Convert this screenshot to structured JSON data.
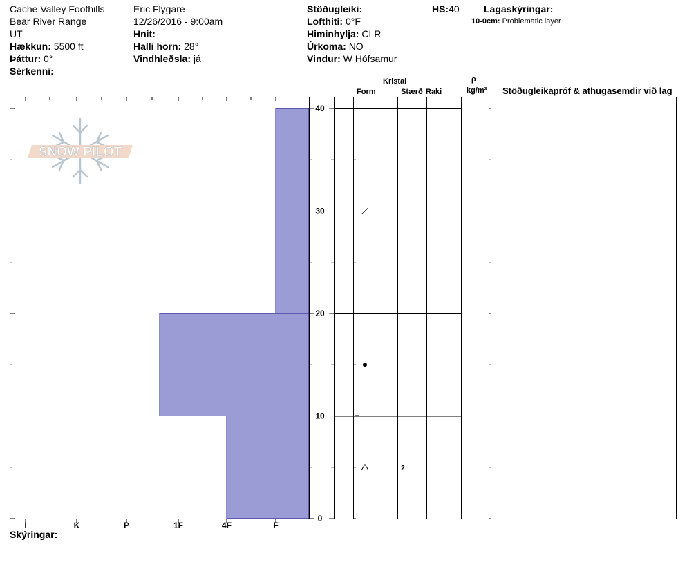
{
  "header": {
    "location": "Cache Valley Foothills",
    "range": "Bear River Range",
    "state": "UT",
    "elevation_label": "Hækkun:",
    "elevation_value": "5500 ft",
    "aspect_label": "Þáttur:",
    "aspect_value": "0°",
    "features_label": "Sérkenni:",
    "observer": "Eric Flygare",
    "datetime": "12/26/2016 - 9:00am",
    "coords_label": "Hnit:",
    "slope_label": "Halli horn:",
    "slope_value": "28°",
    "wind_loading_label": "Vindhleðsla:",
    "wind_loading_value": "já",
    "stability_label": "Stöðugleiki:",
    "air_temp_label": "Lofthiti:",
    "air_temp_value": "0°F",
    "sky_label": "Himinhylja:",
    "sky_value": "CLR",
    "precip_label": "Úrkoma:",
    "precip_value": "NO",
    "wind_label": "Vindur:",
    "wind_value": "W Hófsamur",
    "hs_label": "HS:",
    "hs_value": "40",
    "layer_notes_label": "Lagaskýringar:",
    "layer_note_depth": "10-0cm:",
    "layer_note_text": "Problematic layer",
    "footer_label": "Skýringar:"
  },
  "logo_text": "SNOW PILOT",
  "columns": {
    "crystal": "Kristal",
    "form": "Form",
    "size": "Stærð",
    "moisture": "Raki",
    "rho": "ρ",
    "density_unit": "kg/m³",
    "tests": "Stöðugleikapróf & athugasemdir við lag"
  },
  "chart_data": {
    "type": "bar",
    "orientation": "horizontal-step",
    "y_label": "",
    "ylim": [
      0,
      40
    ],
    "y_ticks": [
      0,
      10,
      20,
      30,
      40
    ],
    "x_categories": [
      "I",
      "K",
      "P",
      "1F",
      "4F",
      "F"
    ],
    "x_direction": "hardness increases to the left; bars extend leftward from the right edge",
    "layers": [
      {
        "top": 40,
        "bottom": 20,
        "hardness": "F"
      },
      {
        "top": 20,
        "bottom": 10,
        "hardness": "1F-"
      },
      {
        "top": 10,
        "bottom": 0,
        "hardness": "4F"
      }
    ],
    "grain_forms": [
      {
        "height": 30,
        "symbol": "decomposing"
      },
      {
        "height": 15,
        "symbol": "rounded"
      },
      {
        "height": 10,
        "symbol": "crust-line"
      },
      {
        "height": 5,
        "symbol": "faceted",
        "size": "2"
      }
    ],
    "bar_color": "#9b9bd6"
  }
}
